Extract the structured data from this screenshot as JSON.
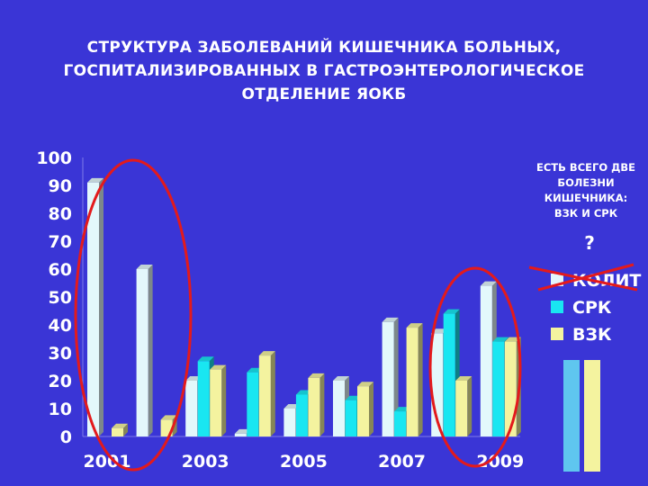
{
  "title": {
    "line1": "СТРУКТУРА ЗАБОЛЕВАНИЙ КИШЕЧНИКА БОЛЬНЫХ,",
    "line2": "ГОСПИТАЛИЗИРОВАННЫХ В ГАСТРОЭНТЕРОЛОГИЧЕСКОЕ",
    "line3": "ОТДЕЛЕНИЕ ЯОКБ"
  },
  "annotation": {
    "note": "ЕСТЬ ВСЕГО ДВЕ БОЛЕЗНИ КИШЕЧНИКА: ВЗК И СРК",
    "question": "?"
  },
  "colors": {
    "background": "#3a35d6",
    "kolit": "#e3f8fb",
    "srk": "#19e6f1",
    "vzk": "#f4f39f",
    "circle": "#e31a1c",
    "cross": "#e31a1c",
    "axis_text": "#ffffff"
  },
  "chart_data": {
    "type": "bar",
    "categories": [
      "2001",
      "2002",
      "2003",
      "2004",
      "2005",
      "2006",
      "2007",
      "2008",
      "2009"
    ],
    "x_tick_labels": [
      "2001",
      "2003",
      "2005",
      "2007",
      "2009"
    ],
    "ylim": [
      0,
      100
    ],
    "y_ticks": [
      0,
      10,
      20,
      30,
      40,
      50,
      60,
      70,
      80,
      90,
      100
    ],
    "legend_position": "right",
    "series": [
      {
        "name": "КОЛИТ",
        "values": [
          91,
          60,
          20,
          1,
          10,
          20,
          41,
          37,
          54
        ]
      },
      {
        "name": "СРК",
        "values": [
          0,
          0,
          27,
          23,
          15,
          13,
          9,
          44,
          34
        ]
      },
      {
        "name": "ВЗК",
        "values": [
          3,
          6,
          24,
          29,
          21,
          18,
          39,
          20,
          34
        ]
      }
    ],
    "crossed_out_series": "КОЛИТ",
    "circled_categories": [
      "2001",
      "2009"
    ]
  }
}
